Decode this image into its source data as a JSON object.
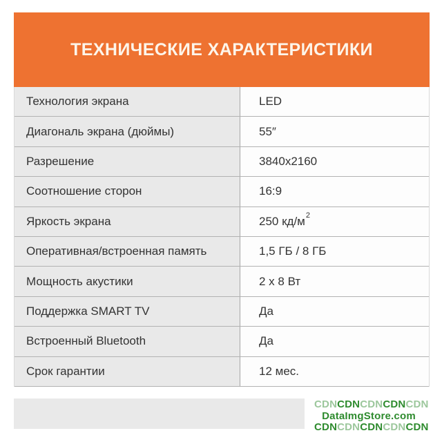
{
  "colors": {
    "banner_orange": "#ee7231",
    "banner_text": "#fdf5ea",
    "label_cell_bg": "#e9e9e9",
    "value_cell_bg": "#fdfdfd",
    "row_divider": "#b2b2b2",
    "cell_text": "#333333",
    "watermark_dark_green": "#2e8b2e",
    "watermark_light_green": "#9cc79c"
  },
  "header": {
    "title": "ТЕХНИЧЕСКИЕ ХАРАКТЕРИСТИКИ"
  },
  "table": {
    "rows": [
      {
        "label": "Технология экрана",
        "value": "LED"
      },
      {
        "label": "Диагональ экрана (дюймы)",
        "value": "55″"
      },
      {
        "label": "Разрешение",
        "value": "3840x2160"
      },
      {
        "label": "Соотношение сторон",
        "value": "16:9"
      },
      {
        "label": "Яркость экрана",
        "value": "250 кд/м",
        "value_sup": "2"
      },
      {
        "label": "Оперативная/встроенная память",
        "value": "1,5 ГБ / 8 ГБ"
      },
      {
        "label": "Мощность акустики",
        "value": "2 x 8 Вт"
      },
      {
        "label": "Поддержка SMART TV",
        "value": "Да"
      },
      {
        "label": "Встроенный Bluetooth",
        "value": "Да"
      },
      {
        "label": "Срок гарантии",
        "value": "12 мес."
      }
    ]
  },
  "watermark": {
    "line1": [
      "CDN",
      "CDN",
      "CDN",
      "CDN",
      "CDN"
    ],
    "line1_tones": [
      "light",
      "dark",
      "light",
      "dark",
      "light"
    ],
    "domain": "DataImgStore.com",
    "line3": [
      "CDN",
      "CDN",
      "CDN",
      "CDN",
      "CDN"
    ],
    "line3_tones": [
      "dark",
      "light",
      "dark",
      "light",
      "dark"
    ]
  }
}
